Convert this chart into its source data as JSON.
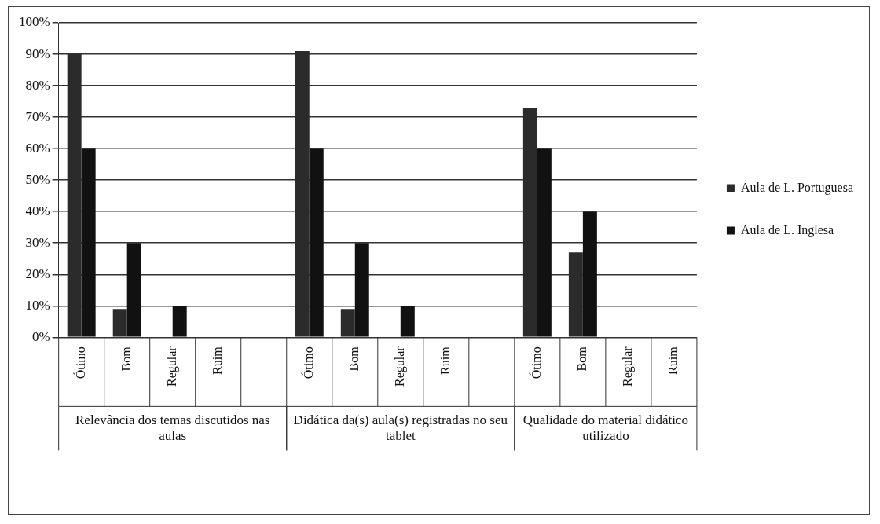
{
  "chart_data": {
    "type": "bar",
    "categories": [
      "Ótimo",
      "Bom",
      "Regular",
      "Ruim",
      null,
      "Ótimo",
      "Bom",
      "Regular",
      "Ruim",
      null,
      "Ótimo",
      "Bom",
      "Regular",
      "Ruim"
    ],
    "series": [
      {
        "name": "Aula de L. Portuguesa",
        "color": "#2b2b2b",
        "values": [
          90,
          9,
          0,
          0,
          null,
          91,
          9,
          0,
          0,
          null,
          73,
          27,
          0,
          0
        ]
      },
      {
        "name": "Aula de L. Inglesa",
        "color": "#111111",
        "values": [
          60,
          30,
          10,
          0,
          null,
          60,
          30,
          10,
          0,
          null,
          60,
          40,
          0,
          0
        ]
      }
    ],
    "ylim": [
      0,
      100
    ],
    "yticks": [
      {
        "value": 0,
        "label": "0%"
      },
      {
        "value": 10,
        "label": "10%"
      },
      {
        "value": 20,
        "label": "20%"
      },
      {
        "value": 30,
        "label": "30%"
      },
      {
        "value": 40,
        "label": "40%"
      },
      {
        "value": 50,
        "label": "50%"
      },
      {
        "value": 60,
        "label": "60%"
      },
      {
        "value": 70,
        "label": "70%"
      },
      {
        "value": 80,
        "label": "80%"
      },
      {
        "value": 90,
        "label": "90%"
      },
      {
        "value": 100,
        "label": "100%"
      }
    ],
    "grid": "y",
    "legend": "right",
    "annotations": [
      "Relevância dos temas discutidos nas aulas",
      "Didática da(s) aula(s) registradas no seu tablet",
      "Qualidade do material didático utilizado"
    ]
  }
}
